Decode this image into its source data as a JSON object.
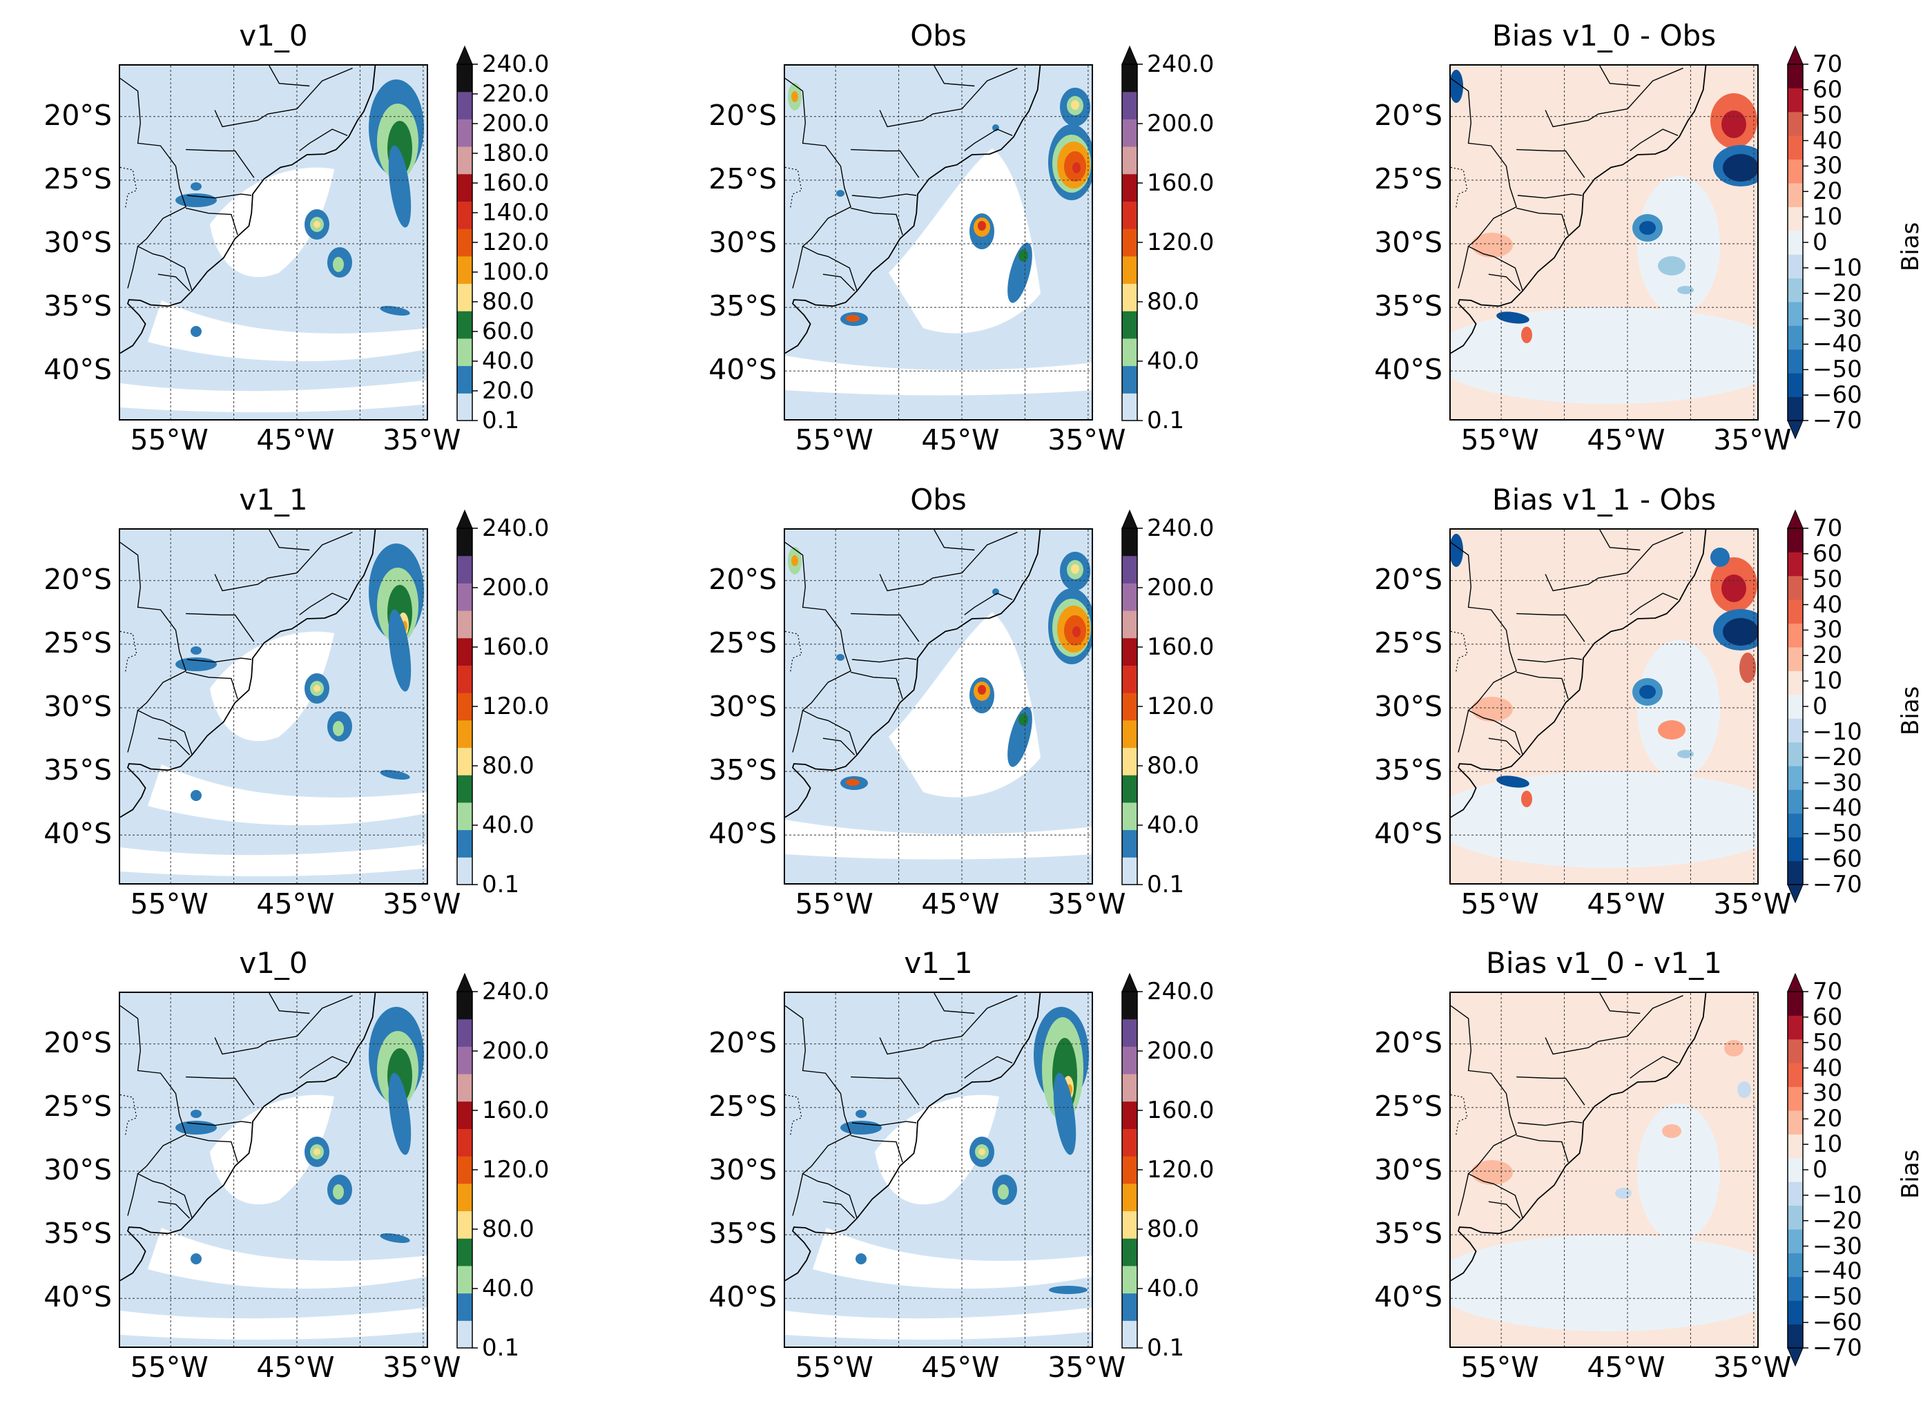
{
  "figure": {
    "panels": [
      {
        "title": "v1_0",
        "kind": "precip",
        "variant": "a",
        "colorbar": "precip_a"
      },
      {
        "title": "Obs",
        "kind": "precip",
        "variant": "obs",
        "colorbar": "precip_b"
      },
      {
        "title": "Bias v1_0 - Obs",
        "kind": "bias",
        "variant": "strong1",
        "colorbar": "bias"
      },
      {
        "title": "v1_1",
        "kind": "precip",
        "variant": "b",
        "colorbar": "precip_b"
      },
      {
        "title": "Obs",
        "kind": "precip",
        "variant": "obs",
        "colorbar": "precip_b"
      },
      {
        "title": "Bias v1_1 - Obs",
        "kind": "bias",
        "variant": "strong2",
        "colorbar": "bias"
      },
      {
        "title": "v1_0",
        "kind": "precip",
        "variant": "a",
        "colorbar": "precip_b"
      },
      {
        "title": "v1_1",
        "kind": "precip",
        "variant": "b2",
        "colorbar": "precip_b"
      },
      {
        "title": "Bias v1_0 - v1_1",
        "kind": "bias",
        "variant": "weak",
        "colorbar": "bias"
      }
    ],
    "lat_labels": [
      "20°S",
      "25°S",
      "30°S",
      "35°S",
      "40°S"
    ],
    "lon_labels": [
      "55°W",
      "45°W",
      "35°W"
    ],
    "colorbars": {
      "precip_a": {
        "ticks": [
          "0.1",
          "20.0",
          "40.0",
          "60.0",
          "80.0",
          "100.0",
          "120.0",
          "140.0",
          "160.0",
          "180.0",
          "200.0",
          "220.0",
          "240.0"
        ],
        "label": ""
      },
      "precip_b": {
        "ticks": [
          "0.1",
          "40.0",
          "80.0",
          "120.0",
          "160.0",
          "200.0",
          "240.0"
        ],
        "label": ""
      },
      "bias": {
        "ticks": [
          "−70",
          "−60",
          "−50",
          "−40",
          "−30",
          "−20",
          "−10",
          "0",
          "10",
          "20",
          "30",
          "40",
          "50",
          "60",
          "70"
        ],
        "label": "Bias"
      }
    },
    "colors": {
      "precip_levels": [
        "#d1e3f3",
        "#2c7bb6",
        "#a6dba0",
        "#1b7837",
        "#fee08b",
        "#f39c12",
        "#e6550d",
        "#d7301f",
        "#a50f15",
        "#d6a0a0",
        "#9e6fa6",
        "#6a4c93",
        "#111111"
      ],
      "bias_levels": [
        "#08306b",
        "#08519c",
        "#2171b5",
        "#4292c6",
        "#6baed6",
        "#9ecae1",
        "#c6dbef",
        "#eaf2f8",
        "#fbe6db",
        "#fcbba1",
        "#fc9272",
        "#ef6548",
        "#d6604d",
        "#b2182b",
        "#67001f"
      ]
    }
  },
  "chart_data": {
    "type": "heatmap",
    "lat_range": [
      "44°S",
      "16°S"
    ],
    "lon_range": [
      "59°W",
      "34.5°W"
    ],
    "grid": true,
    "colorbar_labels": {
      "bias": "Bias"
    },
    "titles": [
      "v1_0",
      "Obs",
      "Bias v1_0 - Obs",
      "v1_1",
      "Obs",
      "Bias v1_1 - Obs",
      "v1_0",
      "v1_1",
      "Bias v1_0 - v1_1"
    ]
  }
}
